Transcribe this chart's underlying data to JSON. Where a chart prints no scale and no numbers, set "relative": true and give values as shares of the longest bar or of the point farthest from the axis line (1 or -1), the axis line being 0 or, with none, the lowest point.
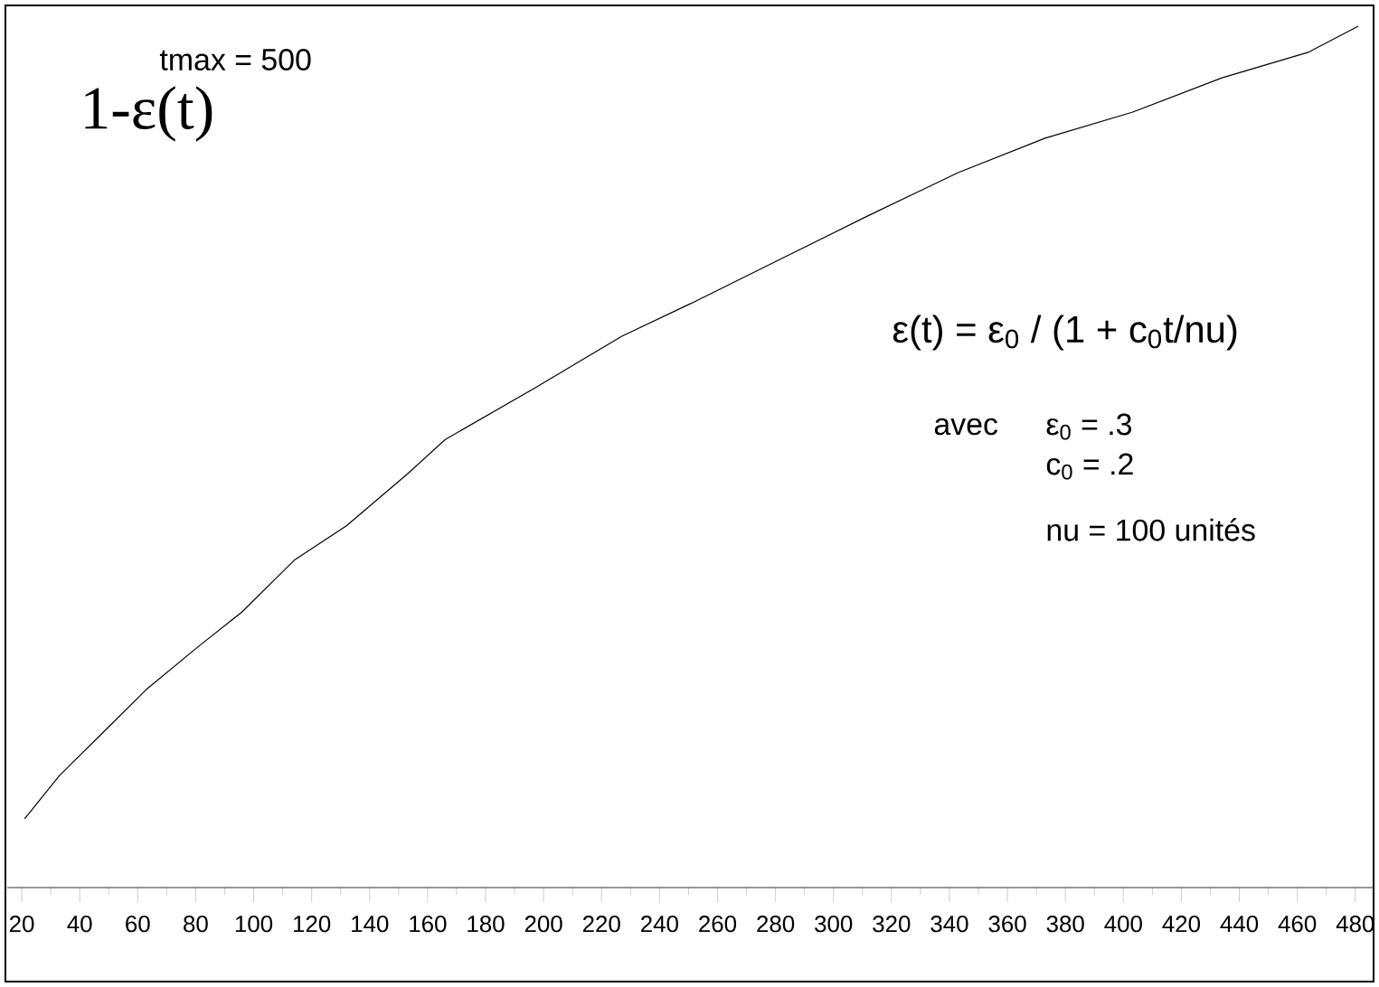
{
  "chart_data": {
    "type": "line",
    "ylabel": "1-ε(t)",
    "annotations": [
      "tmax = 500",
      "ε(t) = ε$_{0}$ / (1 + c$_{0}$t/nu)",
      "avec",
      "ε$_{0}$ = .3",
      "c$_{0}$ = .2",
      "nu = 100 unités"
    ],
    "relative": true,
    "xlim": [
      15,
      486
    ],
    "xticks": [
      20,
      40,
      60,
      80,
      100,
      120,
      140,
      160,
      180,
      200,
      220,
      240,
      260,
      280,
      300,
      320,
      340,
      360,
      380,
      400,
      420,
      440,
      460,
      480
    ],
    "x": [
      21,
      33,
      48,
      63,
      81,
      96,
      114,
      132,
      153,
      166,
      197,
      227,
      252,
      282,
      312,
      343,
      373,
      403,
      434,
      464,
      481
    ],
    "values": [
      0.08,
      0.13,
      0.18,
      0.23,
      0.28,
      0.32,
      0.38,
      0.42,
      0.48,
      0.52,
      0.58,
      0.64,
      0.68,
      0.73,
      0.78,
      0.83,
      0.87,
      0.9,
      0.94,
      0.97,
      1.0
    ],
    "color": "#000000"
  }
}
